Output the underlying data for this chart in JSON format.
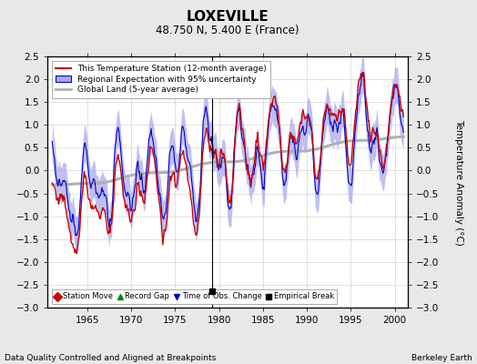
{
  "title": "LOXEVILLE",
  "subtitle": "48.750 N, 5.400 E (France)",
  "xlabel_left": "Data Quality Controlled and Aligned at Breakpoints",
  "xlabel_right": "Berkeley Earth",
  "ylabel": "Temperature Anomaly (°C)",
  "xlim": [
    1960.5,
    2001.5
  ],
  "ylim": [
    -3.0,
    2.5
  ],
  "yticks": [
    -3,
    -2.5,
    -2,
    -1.5,
    -1,
    -0.5,
    0,
    0.5,
    1,
    1.5,
    2,
    2.5
  ],
  "xticks": [
    1965,
    1970,
    1975,
    1980,
    1985,
    1990,
    1995,
    2000
  ],
  "background_color": "#e8e8e8",
  "plot_bg_color": "#ffffff",
  "legend_entries": [
    "This Temperature Station (12-month average)",
    "Regional Expectation with 95% uncertainty",
    "Global Land (5-year average)"
  ],
  "station_line_color": "#cc0000",
  "regional_line_color": "#0000cc",
  "regional_fill_color": "#aaaaee",
  "global_line_color": "#b0b0b0",
  "vertical_line_x": 1979.2,
  "empirical_break_x": 1979.2,
  "empirical_break_y": -2.65,
  "seed": 42
}
